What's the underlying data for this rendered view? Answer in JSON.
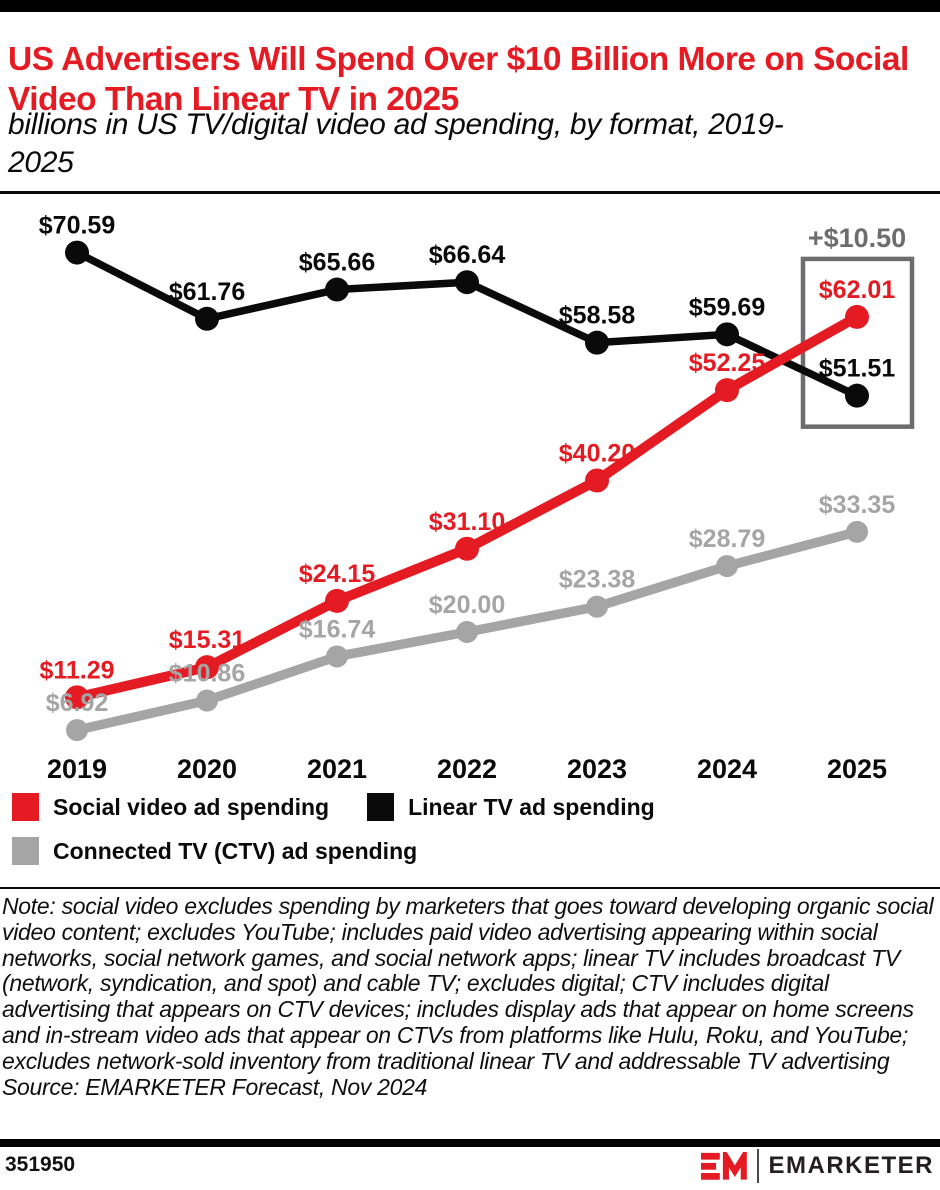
{
  "colors": {
    "brand_red": "#e51b24",
    "black": "#0a0a0a",
    "ctv_gray": "#a5a5a5",
    "annotation_gray": "#6d6d6d"
  },
  "chart_data": {
    "type": "line",
    "title": "US Advertisers Will Spend Over $10 Billion More on Social Video Than Linear TV in 2025",
    "subtitle": "billions in US TV/digital video ad spending, by format, 2019-2025",
    "x": [
      2019,
      2020,
      2021,
      2022,
      2023,
      2024,
      2025
    ],
    "value_prefix": "$",
    "ylim": [
      0,
      78
    ],
    "grid": false,
    "legend_position": "bottom-left",
    "series": [
      {
        "name": "Social video ad spending",
        "color": "#e51b24",
        "values": [
          11.29,
          15.31,
          24.15,
          31.1,
          40.2,
          52.25,
          62.01
        ]
      },
      {
        "name": "Linear TV ad spending",
        "color": "#0a0a0a",
        "values": [
          70.59,
          61.76,
          65.66,
          66.64,
          58.58,
          59.69,
          51.51
        ]
      },
      {
        "name": "Connected TV (CTV) ad spending",
        "color": "#a5a5a5",
        "values": [
          6.92,
          10.86,
          16.74,
          20.0,
          23.38,
          28.79,
          33.35
        ]
      }
    ],
    "annotation": {
      "label": "+$10.50",
      "at_x": 2025,
      "between_series": [
        "Social video ad spending",
        "Linear TV ad spending"
      ],
      "color": "#6d6d6d"
    }
  },
  "note": {
    "text": "Note: social video excludes spending by marketers that goes toward developing organic social video content; excludes YouTube; includes paid video advertising appearing within social networks, social network games, and social network apps; linear TV includes broadcast TV (network, syndication, and spot) and cable TV; excludes digital; CTV includes digital advertising that appears on CTV devices; includes display ads that appear on home screens and in-stream video ads that appear on CTVs from platforms like Hulu, Roku, and YouTube; excludes network-sold inventory from traditional linear TV and addressable TV advertising",
    "source": "Source: EMARKETER Forecast, Nov 2024"
  },
  "footer": {
    "chart_id": "351950",
    "brand_name": "EMARKETER",
    "monogram": "EM"
  }
}
